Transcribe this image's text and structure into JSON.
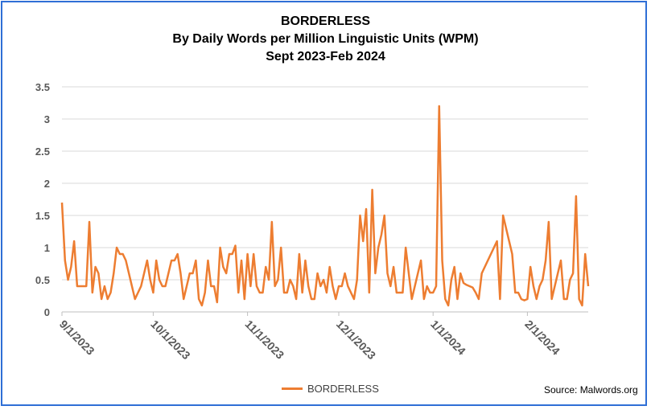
{
  "chart_data": {
    "type": "line",
    "title": "BORDERLESS",
    "subtitle": "By Daily Words per Million Linguistic Units (WPM)",
    "subtitle2": "Sept 2023-Feb 2024",
    "xlabel": "",
    "ylabel": "",
    "ylim": [
      0,
      3.5
    ],
    "yticks": [
      "0",
      "0.5",
      "1",
      "1.5",
      "2",
      "2.5",
      "3",
      "3.5"
    ],
    "xticks": [
      "9/1/2023",
      "10/1/2023",
      "11/1/2023",
      "12/1/2023",
      "1/1/2024",
      "2/1/2024"
    ],
    "x_start": "2023-09-01",
    "grid": true,
    "legend_position": "bottom",
    "series": [
      {
        "name": "BORDERLESS",
        "color": "#ed7d31",
        "values": [
          1.7,
          0.8,
          0.5,
          0.7,
          1.1,
          0.4,
          0.4,
          0.4,
          0.4,
          1.4,
          0.3,
          0.7,
          0.6,
          0.2,
          0.4,
          0.2,
          0.3,
          0.6,
          1.0,
          0.9,
          0.9,
          0.8,
          0.6,
          0.4,
          0.2,
          0.3,
          0.4,
          0.6,
          0.8,
          0.5,
          0.3,
          0.8,
          0.5,
          0.4,
          0.4,
          0.6,
          0.8,
          0.8,
          0.9,
          0.6,
          0.2,
          0.4,
          0.6,
          0.6,
          0.8,
          0.2,
          0.1,
          0.3,
          0.8,
          0.4,
          0.4,
          0.15,
          1.0,
          0.7,
          0.6,
          0.9,
          0.9,
          1.03,
          0.3,
          0.8,
          0.2,
          0.9,
          0.4,
          0.9,
          0.4,
          0.3,
          0.3,
          0.7,
          0.5,
          1.4,
          0.4,
          0.5,
          1.0,
          0.3,
          0.3,
          0.5,
          0.4,
          0.2,
          0.9,
          0.3,
          0.8,
          0.4,
          0.2,
          0.2,
          0.6,
          0.4,
          0.5,
          0.3,
          0.7,
          0.4,
          0.2,
          0.4,
          0.4,
          0.6,
          0.4,
          0.3,
          0.2,
          0.5,
          1.5,
          1.1,
          1.6,
          0.3,
          1.9,
          0.6,
          1.0,
          1.2,
          1.5,
          0.6,
          0.4,
          0.7,
          0.3,
          0.3,
          0.3,
          1.0,
          0.6,
          0.2,
          0.4,
          0.6,
          0.8,
          0.2,
          0.4,
          0.3,
          0.3,
          0.4,
          3.2,
          0.8,
          0.2,
          0.1,
          0.5,
          0.7,
          0.2,
          0.6,
          0.45,
          0.42,
          0.4,
          0.38,
          0.3,
          0.2,
          0.6,
          0.7,
          0.8,
          0.9,
          1.0,
          1.1,
          0.2,
          1.5,
          1.3,
          1.1,
          0.9,
          0.3,
          0.3,
          0.2,
          0.18,
          0.2,
          0.7,
          0.4,
          0.2,
          0.4,
          0.5,
          0.8,
          1.4,
          0.2,
          0.4,
          0.6,
          0.8,
          0.2,
          0.2,
          0.5,
          0.6,
          1.8,
          0.2,
          0.1,
          0.9,
          0.4
        ]
      }
    ]
  },
  "source_text": "Source: Malwords.org"
}
